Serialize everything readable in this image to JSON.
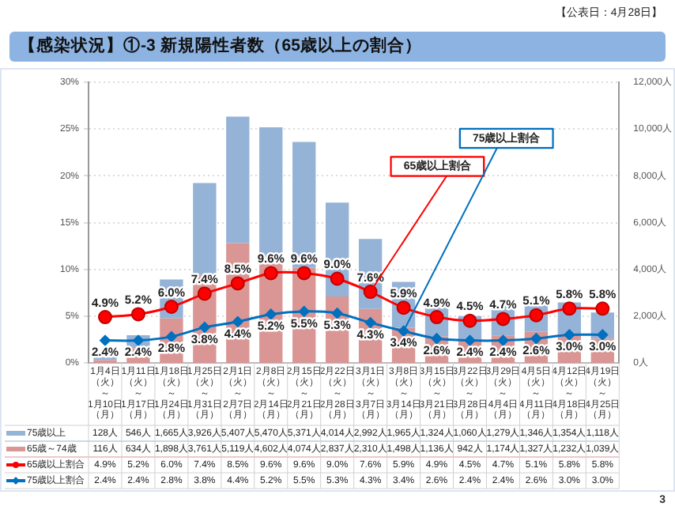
{
  "chart_data": {
    "type": "bar",
    "title": "【感染状況】①-3 新規陽性者数（65歳以上の割合）",
    "annotations": [
      "【公表日：4月28日】",
      "3"
    ],
    "categories": [
      "1月4日（火）～1月10日（月）",
      "1月11日（火）～1月17日（月）",
      "1月18日（火）～1月24日（月）",
      "1月25日（火）～1月31日（月）",
      "2月1日（火）～2月7日（月）",
      "2月8日（火）～2月14日（月）",
      "2月15日（火）～2月21日（月）",
      "2月22日（火）～2月28日（月）",
      "3月1日（火）～3月7日（月）",
      "3月8日（火）～3月14日（月）",
      "3月15日（火）～3月21日（月）",
      "3月22日（火）～3月28日（月）",
      "3月29日（火）～4月4日（月）",
      "4月5日（火）～4月11日（月）",
      "4月12日（火）～4月18日（月）",
      "4月19日（火）～4月25日（月）"
    ],
    "stacked": true,
    "grid": "y",
    "legend": "bottom",
    "ylim": [
      0,
      30
    ],
    "yticks": [
      {
        "value": 0,
        "label": "0%"
      },
      {
        "value": 5,
        "label": "5%"
      },
      {
        "value": 10,
        "label": "10%"
      },
      {
        "value": 15,
        "label": "15%"
      },
      {
        "value": 20,
        "label": "20%"
      },
      {
        "value": 25,
        "label": "25%"
      },
      {
        "value": 30,
        "label": "30%"
      }
    ],
    "y2lim": [
      0,
      12000
    ],
    "y2ticks": [
      {
        "value": 0,
        "label": "0人"
      },
      {
        "value": 2000,
        "label": "2,000人"
      },
      {
        "value": 4000,
        "label": "4,000人"
      },
      {
        "value": 6000,
        "label": "6,000人"
      },
      {
        "value": 8000,
        "label": "8,000人"
      },
      {
        "value": 10000,
        "label": "10,000人"
      },
      {
        "value": 12000,
        "label": "12,000人"
      }
    ],
    "series": [
      {
        "name": "65歳～74歳",
        "axis": "y2",
        "color": "#d99694",
        "values": [
          116,
          634,
          1898,
          3761,
          5119,
          4602,
          4074,
          2837,
          2310,
          1498,
          1136,
          942,
          1174,
          1327,
          1232,
          1039
        ],
        "value_labels": [
          "116人",
          "634人",
          "1,898人",
          "3,761人",
          "5,119人",
          "4,602人",
          "4,074人",
          "2,837人",
          "2,310人",
          "1,498人",
          "1,136人",
          "942人",
          "1,174人",
          "1,327人",
          "1,232人",
          "1,039人"
        ]
      },
      {
        "name": "75歳以上",
        "axis": "y2",
        "color": "#95b3d7",
        "values": [
          128,
          546,
          1665,
          3926,
          5407,
          5470,
          5371,
          4014,
          2992,
          1965,
          1324,
          1060,
          1279,
          1346,
          1354,
          1118
        ],
        "value_labels": [
          "128人",
          "546人",
          "1,665人",
          "3,926人",
          "5,407人",
          "5,470人",
          "5,371人",
          "4,014人",
          "2,992人",
          "1,965人",
          "1,324人",
          "1,060人",
          "1,279人",
          "1,346人",
          "1,354人",
          "1,118人"
        ]
      },
      {
        "name": "65歳以上割合",
        "type": "line",
        "axis": "y",
        "color": "#ff0000",
        "marker": "circle",
        "values": [
          4.9,
          5.2,
          6.0,
          7.4,
          8.5,
          9.6,
          9.6,
          9.0,
          7.6,
          5.9,
          4.9,
          4.5,
          4.7,
          5.1,
          5.8,
          5.8
        ],
        "value_labels": [
          "4.9%",
          "5.2%",
          "6.0%",
          "7.4%",
          "8.5%",
          "9.6%",
          "9.6%",
          "9.0%",
          "7.6%",
          "5.9%",
          "4.9%",
          "4.5%",
          "4.7%",
          "5.1%",
          "5.8%",
          "5.8%"
        ]
      },
      {
        "name": "75歳以上割合",
        "type": "line",
        "axis": "y",
        "color": "#0070c0",
        "marker": "diamond",
        "values": [
          2.4,
          2.4,
          2.8,
          3.8,
          4.4,
          5.2,
          5.5,
          5.3,
          4.3,
          3.4,
          2.6,
          2.4,
          2.4,
          2.6,
          3.0,
          3.0
        ],
        "value_labels": [
          "2.4%",
          "2.4%",
          "2.8%",
          "3.8%",
          "4.4%",
          "5.2%",
          "5.5%",
          "5.3%",
          "4.3%",
          "3.4%",
          "2.6%",
          "2.4%",
          "2.4%",
          "2.6%",
          "3.0%",
          "3.0%"
        ]
      }
    ]
  }
}
